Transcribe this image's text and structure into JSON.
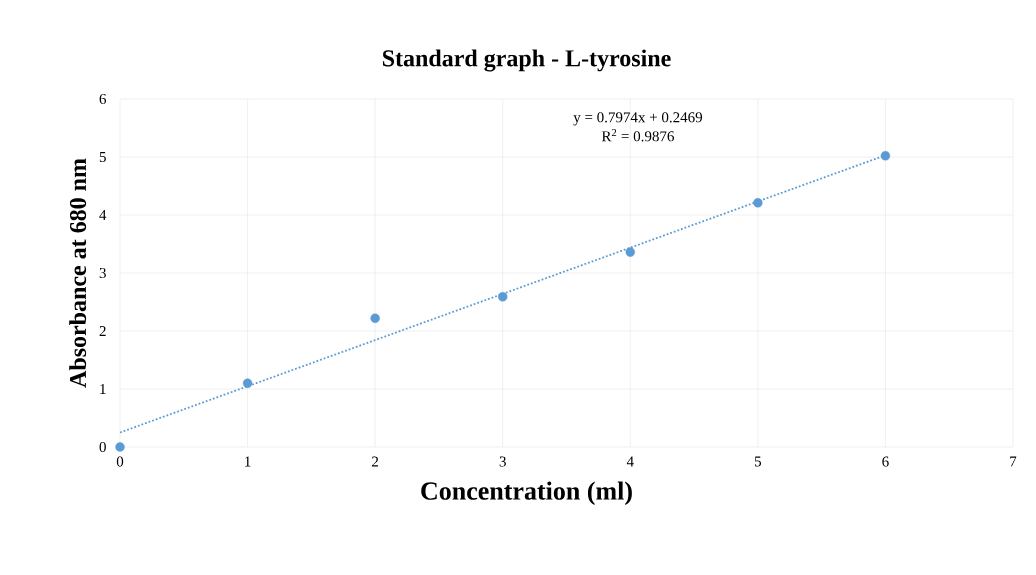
{
  "chart_data": {
    "type": "scatter",
    "title": "Standard graph - L-tyrosine",
    "xlabel": "Concentration (ml)",
    "ylabel": "Absorbance at 680 nm",
    "series": [
      {
        "color": "#5b9bd5",
        "marker": "circle",
        "x": [
          0,
          1,
          2,
          3,
          4,
          5,
          6
        ],
        "values": [
          0,
          1.1,
          2.22,
          2.59,
          3.36,
          4.21,
          5.02
        ]
      },
      {
        "type": "line",
        "color": "#5b9bd5",
        "line_style": "dotted",
        "marker": "none",
        "x": [
          0,
          6
        ],
        "values": [
          0.25,
          5.03
        ]
      }
    ],
    "annotations": [
      "y = 0.7974x + 0.2469",
      "R$^{2}$ = 0.9876"
    ],
    "xlim": [
      0,
      7
    ],
    "ylim": [
      0,
      6
    ],
    "xticks": [
      0,
      1,
      2,
      3,
      4,
      5,
      6,
      7
    ],
    "yticks": [
      0,
      1,
      2,
      3,
      4,
      5,
      6
    ],
    "grid": true
  }
}
